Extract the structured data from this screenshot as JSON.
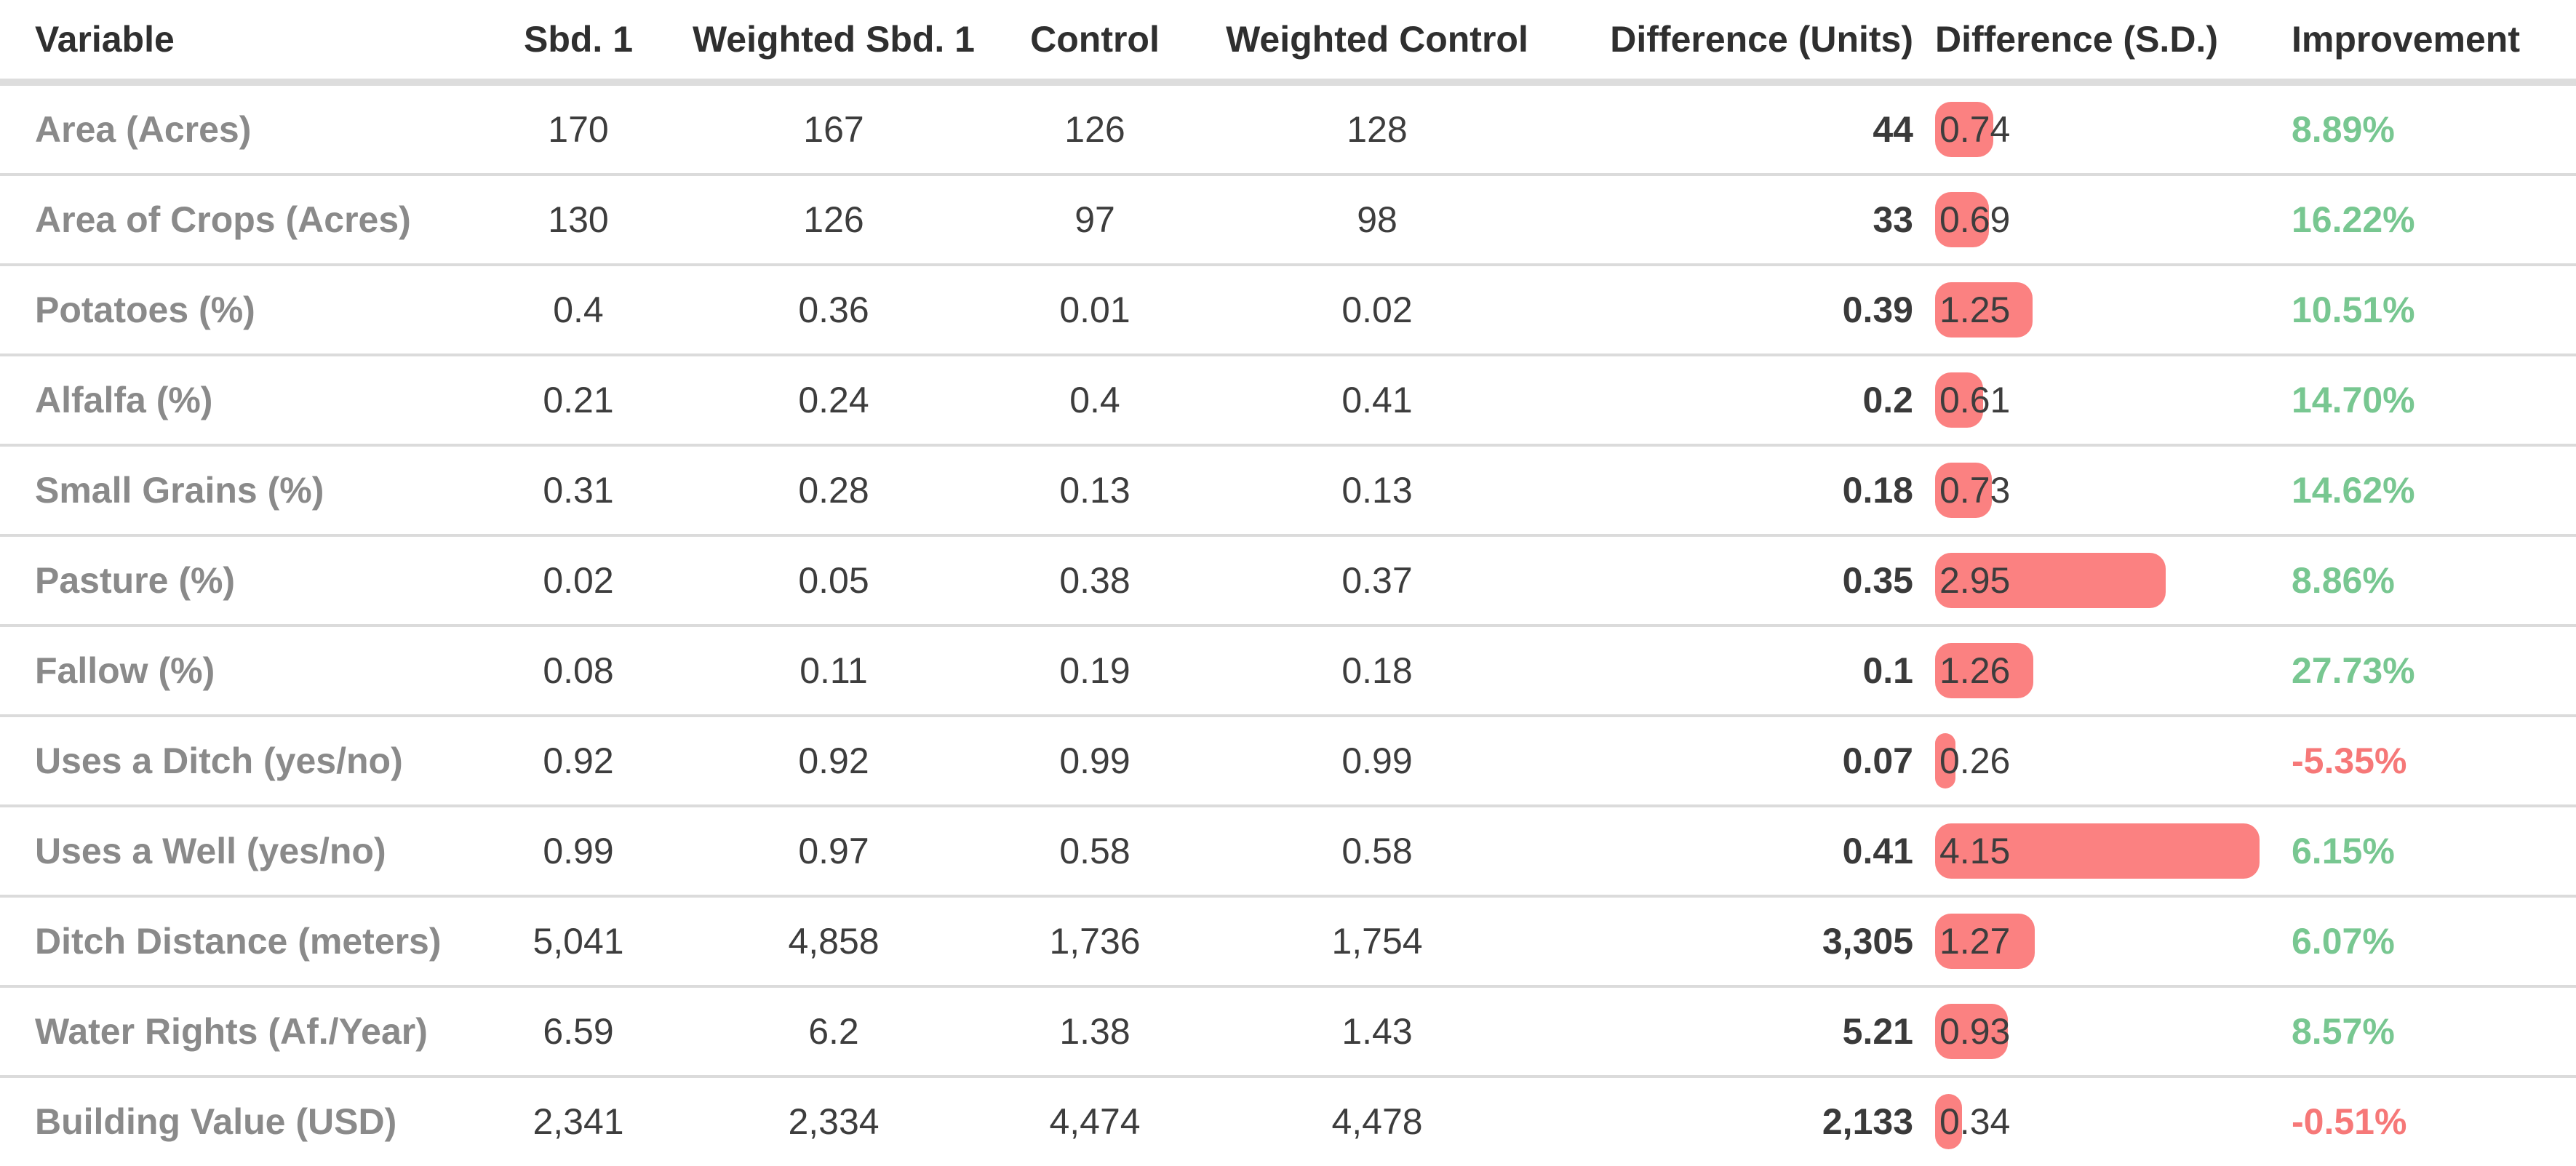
{
  "colors": {
    "bar": "#fb8181",
    "positive": "#78c791",
    "negative": "#f67878",
    "header_text": "#2f2f2f",
    "row_label_text": "#8a8a8a",
    "value_text": "#3d3d3d",
    "divider": "#dbdbdb"
  },
  "chart_data": {
    "type": "table",
    "title": "Covariate balance table with standardized-difference bars",
    "legend_position": "none",
    "grid": "row-dividers",
    "columns": [
      "Variable",
      "Sbd. 1",
      "Weighted Sbd. 1",
      "Control",
      "Weighted Control",
      "Difference (Units)",
      "Difference (S.D.)",
      "Improvement"
    ],
    "sd_bar": {
      "max_value": 4.15,
      "color": "#fb8181"
    },
    "rows": [
      {
        "variable": "Area (Acres)",
        "sbd1": "170",
        "weighted_sbd1": "167",
        "control": "126",
        "weighted_control": "128",
        "difference_units": "44",
        "difference_sd": 0.74,
        "improvement": "8.89%"
      },
      {
        "variable": "Area of Crops (Acres)",
        "sbd1": "130",
        "weighted_sbd1": "126",
        "control": "97",
        "weighted_control": "98",
        "difference_units": "33",
        "difference_sd": 0.69,
        "improvement": "16.22%"
      },
      {
        "variable": "Potatoes (%)",
        "sbd1": "0.4",
        "weighted_sbd1": "0.36",
        "control": "0.01",
        "weighted_control": "0.02",
        "difference_units": "0.39",
        "difference_sd": 1.25,
        "improvement": "10.51%"
      },
      {
        "variable": "Alfalfa (%)",
        "sbd1": "0.21",
        "weighted_sbd1": "0.24",
        "control": "0.4",
        "weighted_control": "0.41",
        "difference_units": "0.2",
        "difference_sd": 0.61,
        "improvement": "14.70%"
      },
      {
        "variable": "Small Grains (%)",
        "sbd1": "0.31",
        "weighted_sbd1": "0.28",
        "control": "0.13",
        "weighted_control": "0.13",
        "difference_units": "0.18",
        "difference_sd": 0.73,
        "improvement": "14.62%"
      },
      {
        "variable": "Pasture (%)",
        "sbd1": "0.02",
        "weighted_sbd1": "0.05",
        "control": "0.38",
        "weighted_control": "0.37",
        "difference_units": "0.35",
        "difference_sd": 2.95,
        "improvement": "8.86%"
      },
      {
        "variable": "Fallow (%)",
        "sbd1": "0.08",
        "weighted_sbd1": "0.11",
        "control": "0.19",
        "weighted_control": "0.18",
        "difference_units": "0.1",
        "difference_sd": 1.26,
        "improvement": "27.73%"
      },
      {
        "variable": "Uses a Ditch (yes/no)",
        "sbd1": "0.92",
        "weighted_sbd1": "0.92",
        "control": "0.99",
        "weighted_control": "0.99",
        "difference_units": "0.07",
        "difference_sd": 0.26,
        "improvement": "-5.35%"
      },
      {
        "variable": "Uses a Well (yes/no)",
        "sbd1": "0.99",
        "weighted_sbd1": "0.97",
        "control": "0.58",
        "weighted_control": "0.58",
        "difference_units": "0.41",
        "difference_sd": 4.15,
        "improvement": "6.15%"
      },
      {
        "variable": "Ditch Distance (meters)",
        "sbd1": "5,041",
        "weighted_sbd1": "4,858",
        "control": "1,736",
        "weighted_control": "1,754",
        "difference_units": "3,305",
        "difference_sd": 1.27,
        "improvement": "6.07%"
      },
      {
        "variable": "Water Rights (Af./Year)",
        "sbd1": "6.59",
        "weighted_sbd1": "6.2",
        "control": "1.38",
        "weighted_control": "1.43",
        "difference_units": "5.21",
        "difference_sd": 0.93,
        "improvement": "8.57%"
      },
      {
        "variable": "Building Value (USD)",
        "sbd1": "2,341",
        "weighted_sbd1": "2,334",
        "control": "4,474",
        "weighted_control": "4,478",
        "difference_units": "2,133",
        "difference_sd": 0.34,
        "improvement": "-0.51%"
      }
    ]
  }
}
